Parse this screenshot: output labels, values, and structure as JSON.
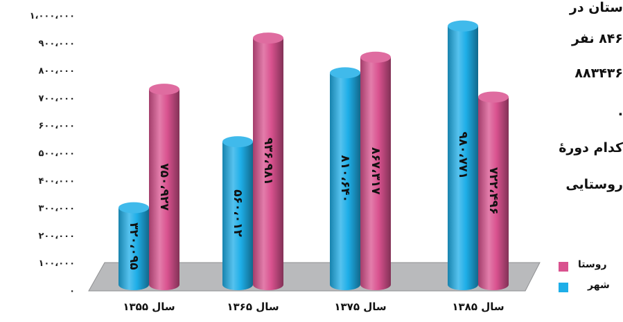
{
  "chart_data": {
    "type": "bar",
    "categories": [
      "سال ۱۳۵۵",
      "سال ۱۳۶۵",
      "سال ۱۳۷۵",
      "سال ۱۳۸۵"
    ],
    "series": [
      {
        "name": "شهر",
        "color": "#1eaee8",
        "values": [
          320095,
          560012,
          810640,
          980771
        ],
        "labels": [
          "۳۲۰،۰۹۵",
          "۵۶۰،۰۱۲",
          "۸۱۰،۶۴۰",
          "۹۸۰،۷۷۱"
        ]
      },
      {
        "name": "روستا",
        "color": "#d9528f",
        "values": [
          750927,
          936981,
          867317,
          722496
        ],
        "labels": [
          "۷۵۰،۹۲۷",
          "۹۳۶،۹۸۱",
          "۸۶۷،۳۱۷",
          "۷۲۲،۴۹۶"
        ]
      }
    ],
    "yticks": [
      "۰",
      "۱۰۰،۰۰۰",
      "۲۰۰،۰۰۰",
      "۳۰۰،۰۰۰",
      "۴۰۰،۰۰۰",
      "۵۰۰،۰۰۰",
      "۶۰۰،۰۰۰",
      "۷۰۰،۰۰۰",
      "۸۰۰،۰۰۰",
      "۹۰۰،۰۰۰",
      "۱،۰۰۰،۰۰۰"
    ],
    "ylim": [
      0,
      1000000
    ],
    "title": "",
    "xlabel": "",
    "ylabel": "",
    "grid": false,
    "legend_position": "right"
  },
  "side_text": [
    "ستان در",
    "۸۴۶ نفر",
    "۸۸۳۴۳۶",
    ".",
    "کدام دورهٔ",
    "روستایی"
  ]
}
